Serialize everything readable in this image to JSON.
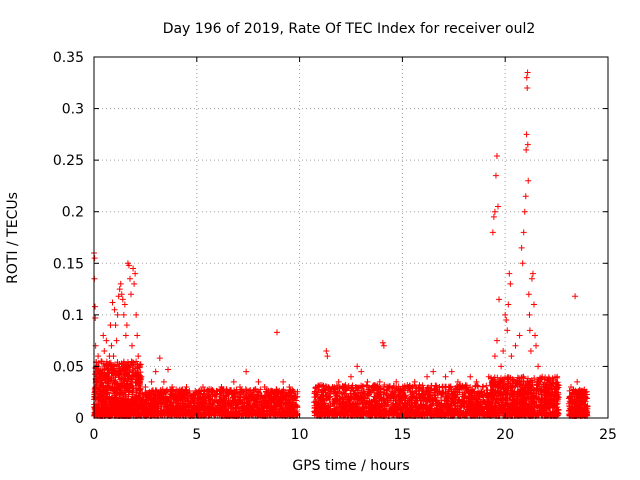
{
  "chart_data": {
    "type": "scatter",
    "title": "Day 196 of 2019, Rate Of TEC Index for receiver oul2",
    "xlabel": "GPS time / hours",
    "ylabel": "ROTI / TECUs",
    "xlim": [
      0,
      25
    ],
    "ylim": [
      0,
      0.35
    ],
    "xticks": [
      0,
      5,
      10,
      15,
      20,
      25
    ],
    "yticks": [
      0,
      0.05,
      0.1,
      0.15,
      0.2,
      0.25,
      0.3,
      0.35
    ],
    "x_tick_labels": [
      "0",
      "5",
      "10",
      "15",
      "20",
      "25"
    ],
    "y_tick_labels": [
      "0",
      "0.05",
      "0.1",
      "0.15",
      "0.2",
      "0.25",
      "0.3",
      "0.35"
    ],
    "grid": true,
    "marker": "+",
    "color": "#ff0000",
    "series": [
      {
        "points": [
          [
            0.0,
            0.16
          ],
          [
            0.02,
            0.135
          ],
          [
            0.03,
            0.155
          ],
          [
            0.05,
            0.108
          ],
          [
            0.06,
            0.097
          ],
          [
            0.08,
            0.07
          ],
          [
            0.1,
            0.05
          ],
          [
            0.12,
            0.04
          ],
          [
            0.15,
            0.03
          ],
          [
            0.2,
            0.06
          ],
          [
            0.25,
            0.045
          ],
          [
            0.3,
            0.02
          ],
          [
            0.35,
            0.055
          ],
          [
            0.4,
            0.03
          ],
          [
            0.45,
            0.08
          ],
          [
            0.5,
            0.065
          ],
          [
            0.55,
            0.04
          ],
          [
            0.6,
            0.075
          ],
          [
            0.65,
            0.05
          ],
          [
            0.7,
            0.03
          ],
          [
            0.75,
            0.06
          ],
          [
            0.8,
            0.09
          ],
          [
            0.85,
            0.07
          ],
          [
            0.9,
            0.112
          ],
          [
            0.95,
            0.06
          ],
          [
            1.0,
            0.105
          ],
          [
            1.05,
            0.09
          ],
          [
            1.1,
            0.075
          ],
          [
            1.15,
            0.1
          ],
          [
            1.2,
            0.118
          ],
          [
            1.25,
            0.125
          ],
          [
            1.3,
            0.13
          ],
          [
            1.35,
            0.12
          ],
          [
            1.4,
            0.115
          ],
          [
            1.45,
            0.1
          ],
          [
            1.5,
            0.11
          ],
          [
            1.55,
            0.08
          ],
          [
            1.6,
            0.09
          ],
          [
            1.65,
            0.15
          ],
          [
            1.7,
            0.148
          ],
          [
            1.75,
            0.135
          ],
          [
            1.8,
            0.12
          ],
          [
            1.85,
            0.07
          ],
          [
            1.9,
            0.145
          ],
          [
            1.95,
            0.13
          ],
          [
            2.0,
            0.14
          ],
          [
            2.05,
            0.1
          ],
          [
            2.1,
            0.08
          ],
          [
            2.15,
            0.06
          ],
          [
            2.3,
            0.04
          ],
          [
            2.5,
            0.03
          ],
          [
            2.8,
            0.035
          ],
          [
            3.0,
            0.045
          ],
          [
            3.2,
            0.058
          ],
          [
            3.4,
            0.035
          ],
          [
            3.6,
            0.047
          ],
          [
            3.8,
            0.03
          ],
          [
            4.0,
            0.02
          ],
          [
            4.2,
            0.025
          ],
          [
            4.5,
            0.03
          ],
          [
            4.8,
            0.02
          ],
          [
            5.0,
            0.025
          ],
          [
            5.3,
            0.03
          ],
          [
            5.6,
            0.028
          ],
          [
            5.9,
            0.022
          ],
          [
            6.2,
            0.03
          ],
          [
            6.5,
            0.025
          ],
          [
            6.8,
            0.035
          ],
          [
            7.1,
            0.03
          ],
          [
            7.4,
            0.045
          ],
          [
            7.7,
            0.025
          ],
          [
            8.0,
            0.035
          ],
          [
            8.3,
            0.03
          ],
          [
            8.6,
            0.025
          ],
          [
            8.9,
            0.083
          ],
          [
            9.2,
            0.035
          ],
          [
            9.5,
            0.03
          ],
          [
            9.8,
            0.02
          ],
          [
            10.8,
            0.03
          ],
          [
            11.1,
            0.025
          ],
          [
            11.3,
            0.065
          ],
          [
            11.35,
            0.06
          ],
          [
            11.6,
            0.03
          ],
          [
            11.9,
            0.035
          ],
          [
            12.2,
            0.03
          ],
          [
            12.5,
            0.04
          ],
          [
            12.8,
            0.05
          ],
          [
            13.0,
            0.045
          ],
          [
            13.3,
            0.035
          ],
          [
            13.6,
            0.03
          ],
          [
            13.9,
            0.035
          ],
          [
            14.05,
            0.073
          ],
          [
            14.1,
            0.07
          ],
          [
            14.4,
            0.03
          ],
          [
            14.7,
            0.035
          ],
          [
            15.0,
            0.025
          ],
          [
            15.3,
            0.03
          ],
          [
            15.6,
            0.035
          ],
          [
            15.9,
            0.03
          ],
          [
            16.2,
            0.04
          ],
          [
            16.5,
            0.045
          ],
          [
            16.8,
            0.03
          ],
          [
            17.1,
            0.04
          ],
          [
            17.4,
            0.045
          ],
          [
            17.7,
            0.035
          ],
          [
            18.0,
            0.03
          ],
          [
            18.3,
            0.04
          ],
          [
            18.6,
            0.035
          ],
          [
            18.9,
            0.03
          ],
          [
            19.2,
            0.04
          ],
          [
            19.4,
            0.18
          ],
          [
            19.45,
            0.195
          ],
          [
            19.5,
            0.2
          ],
          [
            19.55,
            0.235
          ],
          [
            19.6,
            0.254
          ],
          [
            19.65,
            0.205
          ],
          [
            19.7,
            0.115
          ],
          [
            19.6,
            0.075
          ],
          [
            19.5,
            0.06
          ],
          [
            19.8,
            0.05
          ],
          [
            19.9,
            0.065
          ],
          [
            20.0,
            0.1
          ],
          [
            20.05,
            0.095
          ],
          [
            20.1,
            0.085
          ],
          [
            20.15,
            0.11
          ],
          [
            20.2,
            0.14
          ],
          [
            20.25,
            0.13
          ],
          [
            20.3,
            0.06
          ],
          [
            20.5,
            0.07
          ],
          [
            20.7,
            0.08
          ],
          [
            20.8,
            0.165
          ],
          [
            20.85,
            0.15
          ],
          [
            20.9,
            0.18
          ],
          [
            20.95,
            0.2
          ],
          [
            21.0,
            0.215
          ],
          [
            21.02,
            0.26
          ],
          [
            21.04,
            0.275
          ],
          [
            21.05,
            0.33
          ],
          [
            21.07,
            0.32
          ],
          [
            21.09,
            0.335
          ],
          [
            21.1,
            0.265
          ],
          [
            21.12,
            0.23
          ],
          [
            21.15,
            0.12
          ],
          [
            21.18,
            0.1
          ],
          [
            21.2,
            0.085
          ],
          [
            21.25,
            0.065
          ],
          [
            21.3,
            0.135
          ],
          [
            21.35,
            0.14
          ],
          [
            21.4,
            0.11
          ],
          [
            21.45,
            0.08
          ],
          [
            21.5,
            0.07
          ],
          [
            21.6,
            0.05
          ],
          [
            21.8,
            0.04
          ],
          [
            22.0,
            0.03
          ],
          [
            22.2,
            0.035
          ],
          [
            22.4,
            0.025
          ],
          [
            22.6,
            0.02
          ],
          [
            23.2,
            0.03
          ],
          [
            23.4,
            0.118
          ],
          [
            23.5,
            0.035
          ],
          [
            23.7,
            0.025
          ],
          [
            23.9,
            0.02
          ]
        ]
      }
    ],
    "bands": [
      {
        "x0": 0.0,
        "x1": 2.3,
        "ylo": 0.002,
        "yhi": 0.055,
        "n": 900
      },
      {
        "x0": 2.3,
        "x1": 9.9,
        "ylo": 0.002,
        "yhi": 0.028,
        "n": 1500
      },
      {
        "x0": 10.7,
        "x1": 19.3,
        "ylo": 0.002,
        "yhi": 0.032,
        "n": 1700
      },
      {
        "x0": 19.3,
        "x1": 22.6,
        "ylo": 0.002,
        "yhi": 0.04,
        "n": 900
      },
      {
        "x0": 23.1,
        "x1": 24.0,
        "ylo": 0.002,
        "yhi": 0.028,
        "n": 250
      }
    ]
  }
}
